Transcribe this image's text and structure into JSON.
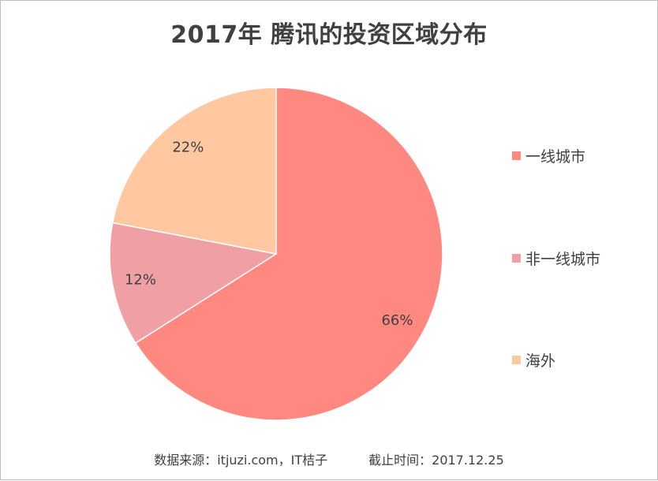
{
  "chart_data": {
    "type": "pie",
    "title": "2017年 腾讯的投资区域分布",
    "categories": [
      "一线城市",
      "非一线城市",
      "海外"
    ],
    "values": [
      66,
      12,
      22
    ],
    "value_labels": [
      "66%",
      "12%",
      "22%"
    ],
    "colors": [
      "#ff8880",
      "#f0a0a5",
      "#ffc8a0"
    ],
    "start_angle_deg": 0,
    "direction": "clockwise",
    "legend_position": "right"
  },
  "footer": {
    "source": "数据来源：itjuzi.com，IT桔子",
    "cutoff": "截止时间：2017.12.25"
  }
}
